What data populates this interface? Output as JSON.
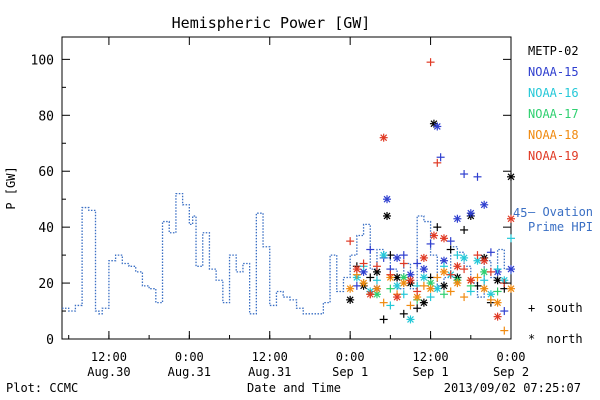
{
  "page": {
    "footer_left": "Plot: CCMC",
    "footer_right": "2013/09/02 07:25:07"
  },
  "chart_data": {
    "type": "scatter",
    "title": "Hemispheric Power [GW]",
    "xlabel": "Date and Time",
    "ylabel": "P [GW]",
    "ylim": [
      0,
      108
    ],
    "xlim_hours": [
      -43,
      24
    ],
    "x_ticks": [
      {
        "hour": -36,
        "time": "12:00",
        "date": "Aug.30"
      },
      {
        "hour": -24,
        "time": "0:00",
        "date": "Aug.31"
      },
      {
        "hour": -12,
        "time": "12:00",
        "date": "Aug.31"
      },
      {
        "hour": 0,
        "time": "0:00",
        "date": "Sep 1"
      },
      {
        "hour": 12,
        "time": "12:00",
        "date": "Sep 1"
      },
      {
        "hour": 24,
        "time": "0:00",
        "date": "Sep 2"
      }
    ],
    "y_ticks": [
      0,
      20,
      40,
      60,
      80,
      100
    ],
    "legend_note": "x-axis hours relative to Sep 1 0:00 UT",
    "ovation": {
      "name": "— Ovation Prime HPI",
      "label_line1": "— Ovation",
      "label_line2": "Prime HPI",
      "value_label": "45",
      "color": "#3a6fc4",
      "hours": [
        -43,
        -42,
        -41,
        -40,
        -39,
        -38,
        -37.5,
        -37,
        -36,
        -35,
        -34,
        -33,
        -32,
        -31,
        -30,
        -29,
        -28,
        -27,
        -26,
        -25,
        -24,
        -23.5,
        -23,
        -22,
        -21,
        -20,
        -19,
        -18,
        -17,
        -16,
        -15,
        -14,
        -13,
        -12,
        -11,
        -10,
        -9,
        -8,
        -7,
        -6,
        -5,
        -4,
        -3,
        -2,
        -1,
        0,
        1,
        2,
        3,
        4,
        5,
        6,
        7,
        8,
        9,
        10,
        11,
        12,
        13,
        14,
        15,
        16,
        17,
        18,
        19,
        20,
        21,
        22,
        23,
        24
      ],
      "values": [
        11,
        10,
        12,
        47,
        46,
        10,
        9,
        11,
        28,
        30,
        27,
        26,
        24,
        19,
        18,
        13,
        42,
        38,
        52,
        48,
        41,
        44,
        26,
        38,
        25,
        21,
        13,
        30,
        24,
        27,
        9,
        45,
        33,
        12,
        17,
        15,
        14,
        11,
        9,
        9,
        9,
        13,
        30,
        17,
        22,
        30,
        37,
        41,
        25,
        32,
        29,
        25,
        18,
        27,
        18,
        44,
        42,
        30,
        19,
        22,
        33,
        31,
        26,
        20,
        15,
        28,
        22,
        32,
        25,
        23
      ]
    },
    "series": [
      {
        "name": "METP-02",
        "color": "#000000",
        "points": [
          [
            0,
            14
          ],
          [
            1,
            26
          ],
          [
            2,
            19
          ],
          [
            3,
            22
          ],
          [
            4,
            24
          ],
          [
            5,
            7
          ],
          [
            5.5,
            44
          ],
          [
            6,
            30
          ],
          [
            7,
            22
          ],
          [
            8,
            9
          ],
          [
            9,
            20
          ],
          [
            10,
            11
          ],
          [
            11,
            13
          ],
          [
            12,
            22
          ],
          [
            12.5,
            77
          ],
          [
            13,
            40
          ],
          [
            14,
            19
          ],
          [
            15,
            32
          ],
          [
            16,
            22
          ],
          [
            17,
            39
          ],
          [
            18,
            44
          ],
          [
            19,
            19
          ],
          [
            20,
            29
          ],
          [
            21,
            13
          ],
          [
            22,
            21
          ],
          [
            23,
            18
          ],
          [
            24,
            58
          ]
        ]
      },
      {
        "name": "NOAA-15",
        "color": "#2f3fcf",
        "points": [
          [
            1,
            19
          ],
          [
            2,
            24
          ],
          [
            3,
            32
          ],
          [
            4,
            18
          ],
          [
            5,
            29
          ],
          [
            5.5,
            50
          ],
          [
            6,
            25
          ],
          [
            7,
            29
          ],
          [
            8,
            30
          ],
          [
            9,
            23
          ],
          [
            10,
            27
          ],
          [
            11,
            25
          ],
          [
            12,
            34
          ],
          [
            13,
            76
          ],
          [
            13.5,
            65
          ],
          [
            14,
            28
          ],
          [
            15,
            35
          ],
          [
            16,
            43
          ],
          [
            17,
            59
          ],
          [
            18,
            45
          ],
          [
            19,
            58
          ],
          [
            20,
            48
          ],
          [
            21,
            31
          ],
          [
            22,
            24
          ],
          [
            23,
            10
          ],
          [
            24,
            25
          ]
        ]
      },
      {
        "name": "NOAA-16",
        "color": "#25c8d8",
        "points": [
          [
            1,
            22
          ],
          [
            2,
            26
          ],
          [
            3,
            17
          ],
          [
            4,
            21
          ],
          [
            5,
            30
          ],
          [
            6,
            12
          ],
          [
            7,
            19
          ],
          [
            8,
            16
          ],
          [
            9,
            7
          ],
          [
            10,
            19
          ],
          [
            11,
            22
          ],
          [
            12,
            15
          ],
          [
            13,
            18
          ],
          [
            14,
            26
          ],
          [
            15,
            23
          ],
          [
            16,
            30
          ],
          [
            17,
            29
          ],
          [
            18,
            17
          ],
          [
            19,
            28
          ],
          [
            20,
            21
          ],
          [
            21,
            16
          ],
          [
            22,
            25
          ],
          [
            23,
            21
          ],
          [
            24,
            36
          ]
        ]
      },
      {
        "name": "NOAA-17",
        "color": "#2fd070",
        "points": [
          [
            2,
            20
          ],
          [
            4,
            16
          ],
          [
            6,
            18
          ],
          [
            8,
            22
          ],
          [
            10,
            14
          ],
          [
            12,
            20
          ],
          [
            14,
            16
          ],
          [
            16,
            21
          ],
          [
            18,
            19
          ],
          [
            20,
            24
          ],
          [
            22,
            17
          ]
        ]
      },
      {
        "name": "NOAA-18",
        "color": "#f08a10",
        "points": [
          [
            0,
            18
          ],
          [
            1,
            23
          ],
          [
            2,
            20
          ],
          [
            3,
            16
          ],
          [
            4,
            18
          ],
          [
            5,
            13
          ],
          [
            6,
            22
          ],
          [
            7,
            16
          ],
          [
            8,
            20
          ],
          [
            9,
            12
          ],
          [
            10,
            15
          ],
          [
            11,
            19
          ],
          [
            12,
            18
          ],
          [
            13,
            22
          ],
          [
            14,
            24
          ],
          [
            15,
            17
          ],
          [
            16,
            20
          ],
          [
            17,
            15
          ],
          [
            18,
            21
          ],
          [
            19,
            22
          ],
          [
            20,
            18
          ],
          [
            21,
            14
          ],
          [
            22,
            13
          ],
          [
            23,
            3
          ],
          [
            24,
            18
          ]
        ]
      },
      {
        "name": "NOAA-19",
        "color": "#e03a25",
        "points": [
          [
            0,
            35
          ],
          [
            1,
            25
          ],
          [
            2,
            27
          ],
          [
            3,
            16
          ],
          [
            4,
            26
          ],
          [
            5,
            72
          ],
          [
            6,
            23
          ],
          [
            7,
            15
          ],
          [
            8,
            27
          ],
          [
            9,
            21
          ],
          [
            10,
            17
          ],
          [
            11,
            29
          ],
          [
            12,
            99
          ],
          [
            12.5,
            37
          ],
          [
            13,
            63
          ],
          [
            14,
            36
          ],
          [
            15,
            23
          ],
          [
            16,
            26
          ],
          [
            17,
            25
          ],
          [
            18,
            21
          ],
          [
            19,
            30
          ],
          [
            20,
            28
          ],
          [
            21,
            24
          ],
          [
            22,
            8
          ],
          [
            23,
            20
          ],
          [
            24,
            43
          ]
        ]
      }
    ],
    "marker_legend": {
      "south_symbol": "+",
      "south_label": "south",
      "north_symbol": "*",
      "north_label": "north"
    }
  }
}
